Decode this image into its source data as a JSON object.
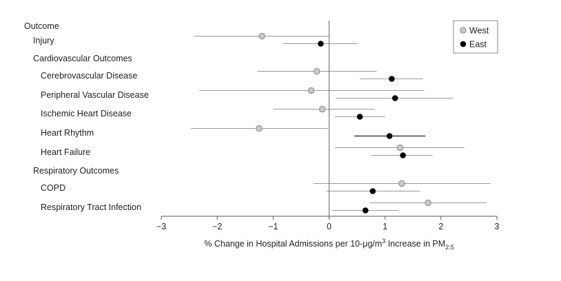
{
  "chart_data": {
    "type": "forest-plot",
    "header": "Outcome",
    "xlabel": {
      "prefix": "% Change in Hospital Admissions per 10-μg/m",
      "sup": "3",
      "middle": " Increase in PM",
      "sub": "2.5"
    },
    "xlim": [
      -3,
      3
    ],
    "xticks": [
      "−3",
      "−2",
      "−1",
      "0",
      "1",
      "2",
      "3"
    ],
    "xtick_values": [
      -3,
      -2,
      -1,
      0,
      1,
      2,
      3
    ],
    "legend": {
      "placement": "top-right",
      "entries": [
        {
          "name": "West",
          "color": "#c8c8c8"
        },
        {
          "name": "East",
          "color": "#000000"
        }
      ]
    },
    "colors": {
      "west_fill": "#c8c8c8",
      "west_stroke": "#8a8a8a",
      "west_ci": "#9a9a9a",
      "east_fill": "#000000",
      "east_ci": "#9a9a9a",
      "axis": "#555555"
    },
    "rows": [
      {
        "label": "Injury",
        "indent": 0,
        "west": {
          "est": -1.2,
          "lo": -2.42,
          "hi": 0.0
        },
        "east": {
          "est": -0.15,
          "lo": -0.82,
          "hi": 0.52
        }
      },
      {
        "label": "Cardiovascular Outcomes",
        "indent": 0,
        "section": true
      },
      {
        "label": "Cerebrovascular Disease",
        "indent": 1,
        "west": {
          "est": -0.22,
          "lo": -1.28,
          "hi": 0.85
        },
        "east": {
          "est": 1.12,
          "lo": 0.55,
          "hi": 1.68
        }
      },
      {
        "label": "Peripheral Vascular Disease",
        "indent": 1,
        "west": {
          "est": -0.32,
          "lo": -2.32,
          "hi": 1.7
        },
        "east": {
          "est": 1.18,
          "lo": 0.12,
          "hi": 2.22
        }
      },
      {
        "label": "Ischemic Heart Disease",
        "indent": 1,
        "west": {
          "est": -0.12,
          "lo": -1.0,
          "hi": 0.82
        },
        "east": {
          "est": 0.55,
          "lo": 0.1,
          "hi": 1.0
        }
      },
      {
        "label": "Heart Rhythm",
        "indent": 1,
        "west": {
          "est": -1.25,
          "lo": -2.47,
          "hi": -0.02
        },
        "east": {
          "est": 1.08,
          "lo": 0.45,
          "hi": 1.72
        }
      },
      {
        "label": "Heart Failure",
        "indent": 1,
        "west": {
          "est": 1.27,
          "lo": 0.1,
          "hi": 2.42
        },
        "east": {
          "est": 1.32,
          "lo": 0.75,
          "hi": 1.85
        }
      },
      {
        "label": "Respiratory Outcomes",
        "indent": 0,
        "section": true
      },
      {
        "label": "COPD",
        "indent": 1,
        "west": {
          "est": 1.3,
          "lo": -0.28,
          "hi": 2.88
        },
        "east": {
          "est": 0.78,
          "lo": -0.05,
          "hi": 1.62
        }
      },
      {
        "label": "Respiratory Tract Infection",
        "indent": 1,
        "west": {
          "est": 1.77,
          "lo": 0.72,
          "hi": 2.82
        },
        "east": {
          "est": 0.65,
          "lo": 0.05,
          "hi": 1.25
        }
      }
    ]
  }
}
